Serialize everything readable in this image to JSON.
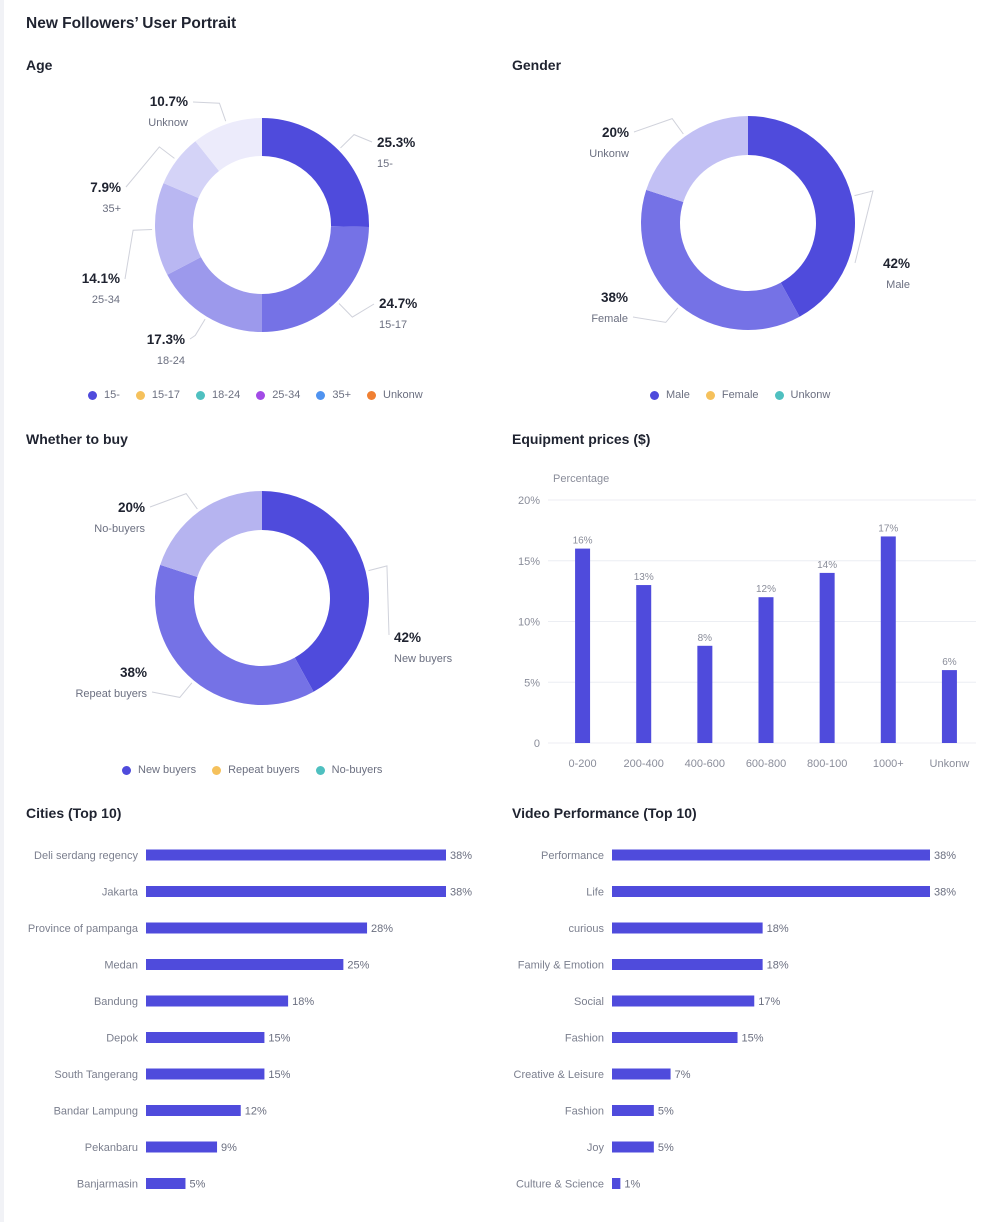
{
  "page": {
    "title": "New Followers’ User Portrait"
  },
  "colors": {
    "bar": "#4f4bdc",
    "legend": [
      "#4f4bdc",
      "#f5c15c",
      "#4fc0c0",
      "#a24be6",
      "#4f93f0",
      "#f08033"
    ]
  },
  "chart_data": [
    {
      "id": "age",
      "type": "pie",
      "title": "Age",
      "slices": [
        {
          "label": "15-",
          "value": 25.3,
          "text": "25.3%",
          "color": "#4f4bdc"
        },
        {
          "label": "15-17",
          "value": 24.7,
          "text": "24.7%",
          "color": "#7572e6"
        },
        {
          "label": "18-24",
          "value": 17.3,
          "text": "17.3%",
          "color": "#9c99ec"
        },
        {
          "label": "25-34",
          "value": 14.1,
          "text": "14.1%",
          "color": "#b9b7f2"
        },
        {
          "label": "35+",
          "value": 7.9,
          "text": "7.9%",
          "color": "#d4d3f7"
        },
        {
          "label": "Unknow",
          "value": 10.7,
          "text": "10.7%",
          "color": "#ecebfb"
        }
      ],
      "legend": [
        "15-",
        "15-17",
        "18-24",
        "25-34",
        "35+",
        "Unkonw"
      ]
    },
    {
      "id": "gender",
      "type": "pie",
      "title": "Gender",
      "slices": [
        {
          "label": "Male",
          "value": 42,
          "text": "42%",
          "color": "#4f4bdc"
        },
        {
          "label": "Female",
          "value": 38,
          "text": "38%",
          "color": "#7572e6"
        },
        {
          "label": "Unkonw",
          "value": 20,
          "text": "20%",
          "color": "#c2c0f4"
        }
      ],
      "legend": [
        "Male",
        "Female",
        "Unkonw"
      ]
    },
    {
      "id": "buy",
      "type": "pie",
      "title": "Whether to buy",
      "slices": [
        {
          "label": "New buyers",
          "value": 42,
          "text": "42%",
          "color": "#4f4bdc"
        },
        {
          "label": "Repeat buyers",
          "value": 38,
          "text": "38%",
          "color": "#7572e6"
        },
        {
          "label": "No-buyers",
          "value": 20,
          "text": "20%",
          "color": "#b6b4f0"
        }
      ],
      "legend": [
        "New buyers",
        "Repeat buyers",
        "No-buyers"
      ]
    },
    {
      "id": "equipment",
      "type": "bar",
      "title": "Equipment prices ($)",
      "ylabel": "Percentage",
      "categories": [
        "0-200",
        "200-400",
        "400-600",
        "600-800",
        "800-100",
        "1000+",
        "Unkonw"
      ],
      "values": [
        16,
        13,
        8,
        12,
        14,
        17,
        6
      ],
      "value_labels": [
        "16%",
        "13%",
        "8%",
        "12%",
        "14%",
        "17%",
        "6%"
      ],
      "ylim": [
        0,
        20
      ],
      "yticks": [
        0,
        5,
        10,
        15,
        20
      ],
      "ytick_labels": [
        "0",
        "5%",
        "10%",
        "15%",
        "20%"
      ],
      "grid": true
    },
    {
      "id": "cities",
      "type": "bar",
      "orientation": "horizontal",
      "title": "Cities (Top 10)",
      "categories": [
        "Deli serdang regency",
        "Jakarta",
        "Province of pampanga",
        "Medan",
        "Bandung",
        "Depok",
        "South Tangerang",
        "Bandar Lampung",
        "Pekanbaru",
        "Banjarmasin"
      ],
      "values": [
        38,
        38,
        28,
        25,
        18,
        15,
        15,
        12,
        9,
        5
      ],
      "value_labels": [
        "38%",
        "38%",
        "28%",
        "25%",
        "18%",
        "15%",
        "15%",
        "12%",
        "9%",
        "5%"
      ]
    },
    {
      "id": "video",
      "type": "bar",
      "orientation": "horizontal",
      "title": "Video Performance (Top 10)",
      "categories": [
        "Performance",
        "Life",
        "curious",
        "Family & Emotion",
        "Social",
        "Fashion",
        "Creative & Leisure",
        "Fashion",
        "Joy",
        "Culture & Science"
      ],
      "values": [
        38,
        38,
        18,
        18,
        17,
        15,
        7,
        5,
        5,
        1
      ],
      "value_labels": [
        "38%",
        "38%",
        "18%",
        "18%",
        "17%",
        "15%",
        "7%",
        "5%",
        "5%",
        "1%"
      ]
    }
  ]
}
